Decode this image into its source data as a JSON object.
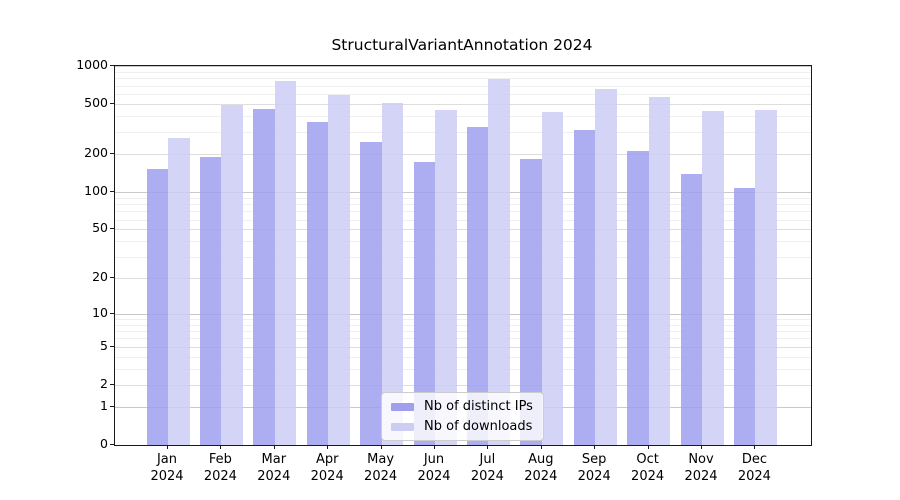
{
  "chart_data": {
    "type": "bar",
    "title": "StructuralVariantAnnotation 2024",
    "x_categories": [
      "Jan",
      "Feb",
      "Mar",
      "Apr",
      "May",
      "Jun",
      "Jul",
      "Aug",
      "Sep",
      "Oct",
      "Nov",
      "Dec"
    ],
    "x_year_label": "2024",
    "y_ticks": [
      0,
      1,
      2,
      5,
      10,
      20,
      50,
      100,
      200,
      500,
      1000
    ],
    "y_minor_gridlines": [
      3,
      4,
      6,
      7,
      8,
      9,
      30,
      40,
      60,
      70,
      80,
      90,
      300,
      400,
      600,
      700,
      800,
      900
    ],
    "y_scale": "log10(1+x)",
    "ylim": [
      0,
      1000
    ],
    "grid": true,
    "legend_position": "lower-center",
    "series": [
      {
        "name": "Nb of distinct IPs",
        "color": "#9f9fee",
        "values": [
          152,
          190,
          455,
          360,
          250,
          173,
          328,
          182,
          312,
          213,
          139,
          107
        ]
      },
      {
        "name": "Nb of downloads",
        "color": "#cdcdf4",
        "values": [
          268,
          490,
          760,
          589,
          508,
          447,
          789,
          431,
          656,
          568,
          440,
          446
        ]
      }
    ]
  },
  "colors": {
    "grid_decade": "#c9c9c9",
    "grid_mid": "#dedede",
    "grid_minor": "#efefef",
    "spine": "#1a1a1a",
    "text": "#000000"
  }
}
